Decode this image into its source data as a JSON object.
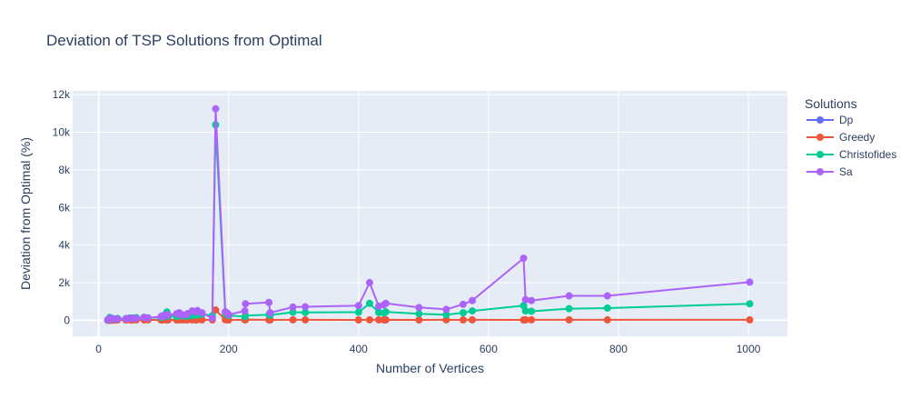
{
  "chart_data": {
    "type": "line",
    "title": "Deviation of TSP Solutions from Optimal",
    "xlabel": "Number of Vertices",
    "ylabel": "Deviation from Optimal (%)",
    "xlim": [
      -40,
      1060
    ],
    "ylim": [
      -850,
      12200
    ],
    "xticks": [
      0,
      200,
      400,
      600,
      800,
      1000
    ],
    "xtick_labels": [
      "0",
      "200",
      "400",
      "600",
      "800",
      "1000"
    ],
    "yticks": [
      0,
      2000,
      4000,
      6000,
      8000,
      10000,
      12000
    ],
    "ytick_labels": [
      "0",
      "2k",
      "4k",
      "6k",
      "8k",
      "10k",
      "12k"
    ],
    "grid": true,
    "legend_title": "Solutions",
    "legend_position": "right",
    "series": [
      {
        "name": "Dp",
        "color": "#636efa",
        "x": [
          14,
          16,
          17,
          22
        ],
        "y": [
          0,
          0,
          0,
          0
        ]
      },
      {
        "name": "Greedy",
        "color": "#ef553b",
        "x": [
          14,
          16,
          17,
          22,
          26,
          29,
          42,
          48,
          51,
          52,
          58,
          70,
          76,
          96,
          99,
          100,
          105,
          107,
          120,
          124,
          127,
          130,
          136,
          137,
          144,
          150,
          152,
          159,
          175,
          180,
          195,
          198,
          200,
          225,
          226,
          262,
          264,
          299,
          318,
          400,
          417,
          431,
          439,
          442,
          493,
          535,
          561,
          575,
          654,
          657,
          666,
          724,
          783,
          1002
        ],
        "y": [
          0,
          10,
          15,
          20,
          15,
          20,
          15,
          25,
          20,
          15,
          25,
          20,
          25,
          15,
          25,
          30,
          20,
          25,
          20,
          25,
          30,
          25,
          20,
          30,
          25,
          20,
          30,
          25,
          20,
          550,
          30,
          25,
          20,
          25,
          30,
          25,
          20,
          25,
          25,
          20,
          25,
          25,
          20,
          25,
          20,
          25,
          20,
          25,
          20,
          25,
          25,
          25,
          25,
          25
        ]
      },
      {
        "name": "Christofides",
        "color": "#00cc96",
        "x": [
          14,
          16,
          17,
          22,
          26,
          29,
          42,
          48,
          51,
          52,
          58,
          70,
          76,
          96,
          99,
          100,
          105,
          107,
          120,
          124,
          127,
          130,
          136,
          137,
          144,
          150,
          152,
          159,
          175,
          180,
          195,
          198,
          200,
          225,
          226,
          262,
          264,
          299,
          318,
          400,
          417,
          431,
          439,
          442,
          493,
          535,
          561,
          575,
          654,
          657,
          666,
          724,
          783,
          1002
        ],
        "y": [
          20,
          40,
          150,
          80,
          60,
          100,
          90,
          120,
          100,
          120,
          140,
          160,
          130,
          150,
          180,
          200,
          440,
          220,
          200,
          280,
          250,
          230,
          220,
          260,
          250,
          300,
          280,
          320,
          250,
          10400,
          350,
          300,
          250,
          200,
          250,
          300,
          280,
          430,
          420,
          430,
          900,
          420,
          380,
          450,
          350,
          300,
          400,
          500,
          780,
          500,
          480,
          620,
          650,
          880
        ]
      },
      {
        "name": "Sa",
        "color": "#ab63fa",
        "x": [
          14,
          16,
          17,
          22,
          26,
          29,
          42,
          48,
          51,
          52,
          58,
          70,
          76,
          96,
          99,
          100,
          105,
          107,
          120,
          124,
          127,
          130,
          136,
          137,
          144,
          150,
          152,
          159,
          175,
          180,
          195,
          198,
          200,
          225,
          226,
          262,
          264,
          299,
          318,
          400,
          417,
          431,
          439,
          442,
          493,
          535,
          561,
          575,
          654,
          657,
          666,
          724,
          783,
          1002
        ],
        "y": [
          30,
          60,
          100,
          90,
          70,
          60,
          80,
          100,
          90,
          110,
          100,
          150,
          120,
          200,
          250,
          220,
          300,
          280,
          350,
          400,
          300,
          280,
          320,
          350,
          500,
          450,
          520,
          400,
          100,
          11250,
          450,
          380,
          300,
          500,
          880,
          950,
          400,
          700,
          720,
          780,
          2000,
          750,
          820,
          900,
          680,
          580,
          850,
          1050,
          3300,
          1100,
          1050,
          1300,
          1300,
          2030
        ]
      }
    ]
  }
}
